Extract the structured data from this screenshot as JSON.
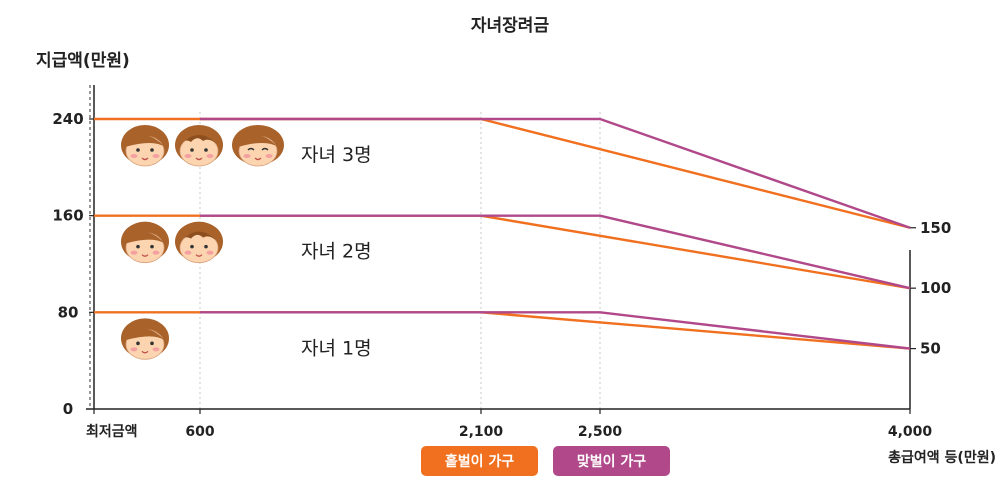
{
  "chart_data": {
    "type": "line",
    "title": "자녀장려금",
    "ylabel": "지급액(만원)",
    "xlabel": "총급여액 등(만원)",
    "x_ticks": [
      {
        "label": "최저금액",
        "x": 0
      },
      {
        "label": "600",
        "x": 600
      },
      {
        "label": "2,100",
        "x": 2100
      },
      {
        "label": "2,500",
        "x": 2500
      },
      {
        "label": "4,000",
        "x": 4000
      }
    ],
    "y_ticks_left": [
      0,
      80,
      160,
      240
    ],
    "y_ticks_right": [
      50,
      100,
      150
    ],
    "ylim": [
      0,
      240
    ],
    "legend": [
      {
        "label": "홑벌이 가구",
        "color": "#f07020"
      },
      {
        "label": "맞벌이 가구",
        "color": "#b0488a"
      }
    ],
    "groups": [
      {
        "label": "자녀 3명",
        "children": 3,
        "series": [
          {
            "name": "홑벌이 가구",
            "x": [
              0,
              2100,
              4000
            ],
            "y": [
              240,
              240,
              150
            ]
          },
          {
            "name": "맞벌이 가구",
            "x": [
              600,
              2500,
              4000
            ],
            "y": [
              240,
              240,
              150
            ]
          }
        ]
      },
      {
        "label": "자녀 2명",
        "children": 2,
        "series": [
          {
            "name": "홑벌이 가구",
            "x": [
              0,
              2100,
              4000
            ],
            "y": [
              160,
              160,
              100
            ]
          },
          {
            "name": "맞벌이 가구",
            "x": [
              600,
              2500,
              4000
            ],
            "y": [
              160,
              160,
              100
            ]
          }
        ]
      },
      {
        "label": "자녀 1명",
        "children": 1,
        "series": [
          {
            "name": "홑벌이 가구",
            "x": [
              0,
              2100,
              4000
            ],
            "y": [
              80,
              80,
              50
            ]
          },
          {
            "name": "맞벌이 가구",
            "x": [
              600,
              2500,
              4000
            ],
            "y": [
              80,
              80,
              50
            ]
          }
        ]
      }
    ]
  }
}
